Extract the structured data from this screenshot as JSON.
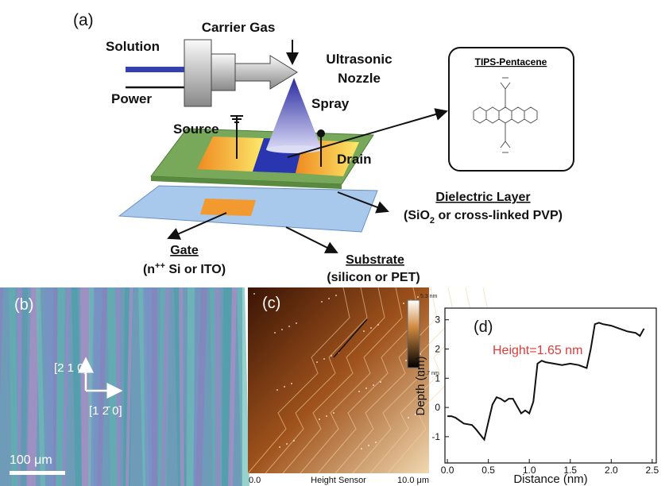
{
  "panel_a": {
    "label": "(a)",
    "solution": "Solution",
    "power": "Power",
    "carrier_gas": "Carrier Gas",
    "nozzle": [
      "Ultrasonic",
      "Nozzle"
    ],
    "spray": "Spray",
    "source": "Source",
    "drain": "Drain",
    "molecule": "TIPS-Pentacene",
    "dielectric": {
      "title": "Dielectric Layer",
      "detail": [
        "(SiO",
        "2",
        " or cross-linked PVP)"
      ]
    },
    "gate": {
      "title": "Gate",
      "detail": [
        "(n",
        "++",
        " Si or ITO)"
      ]
    },
    "substrate": {
      "title": "Substrate",
      "detail": "(silicon or PET)"
    }
  },
  "panel_b": {
    "label": "(b)",
    "direction_up": "[2 1 0]",
    "direction_right": "[1 2̄ 0]",
    "scale_bar": "100 μm"
  },
  "panel_c": {
    "label": "(c)",
    "color_max": "5.3 nm",
    "color_min": "-5.7 nm",
    "x_start": "0.0",
    "channel": "Height Sensor",
    "x_end": "10.0 μm"
  },
  "chart_data": {
    "type": "line",
    "panel_label": "(d)",
    "annotation": "Height=1.65 nm",
    "x_label": "Distance (nm)",
    "y_label": "Depth (nm)",
    "color": "#111111",
    "x": [
      0,
      0.05,
      0.1,
      0.2,
      0.3,
      0.35,
      0.42,
      0.45,
      0.5,
      0.55,
      0.6,
      0.65,
      0.7,
      0.75,
      0.8,
      0.85,
      0.9,
      0.95,
      1.0,
      1.05,
      1.1,
      1.15,
      1.2,
      1.3,
      1.4,
      1.5,
      1.6,
      1.65,
      1.7,
      1.75,
      1.8,
      1.85,
      1.9,
      2.0,
      2.1,
      2.2,
      2.3,
      2.35,
      2.4
    ],
    "values": [
      -0.3,
      -0.3,
      -0.35,
      -0.55,
      -0.6,
      -0.75,
      -1.0,
      -1.1,
      -0.5,
      0.1,
      0.35,
      0.3,
      0.2,
      0.3,
      0.3,
      0.05,
      -0.2,
      -0.1,
      -0.2,
      0.2,
      1.5,
      1.6,
      1.55,
      1.5,
      1.45,
      1.5,
      1.45,
      1.4,
      1.35,
      2.0,
      2.85,
      2.9,
      2.85,
      2.8,
      2.7,
      2.6,
      2.55,
      2.45,
      2.7
    ],
    "xlim": [
      -0.03,
      2.55
    ],
    "ylim": [
      -1.9,
      3.4
    ],
    "xticks": [
      {
        "value": 0,
        "label": "0.0"
      },
      {
        "value": 0.5,
        "label": "0.5"
      },
      {
        "value": 1,
        "label": "1.0"
      },
      {
        "value": 1.5,
        "label": "1.5"
      },
      {
        "value": 2,
        "label": "2.0"
      },
      {
        "value": 2.5,
        "label": "2.5"
      }
    ],
    "yticks": [
      -1,
      0,
      1,
      2,
      3
    ]
  }
}
